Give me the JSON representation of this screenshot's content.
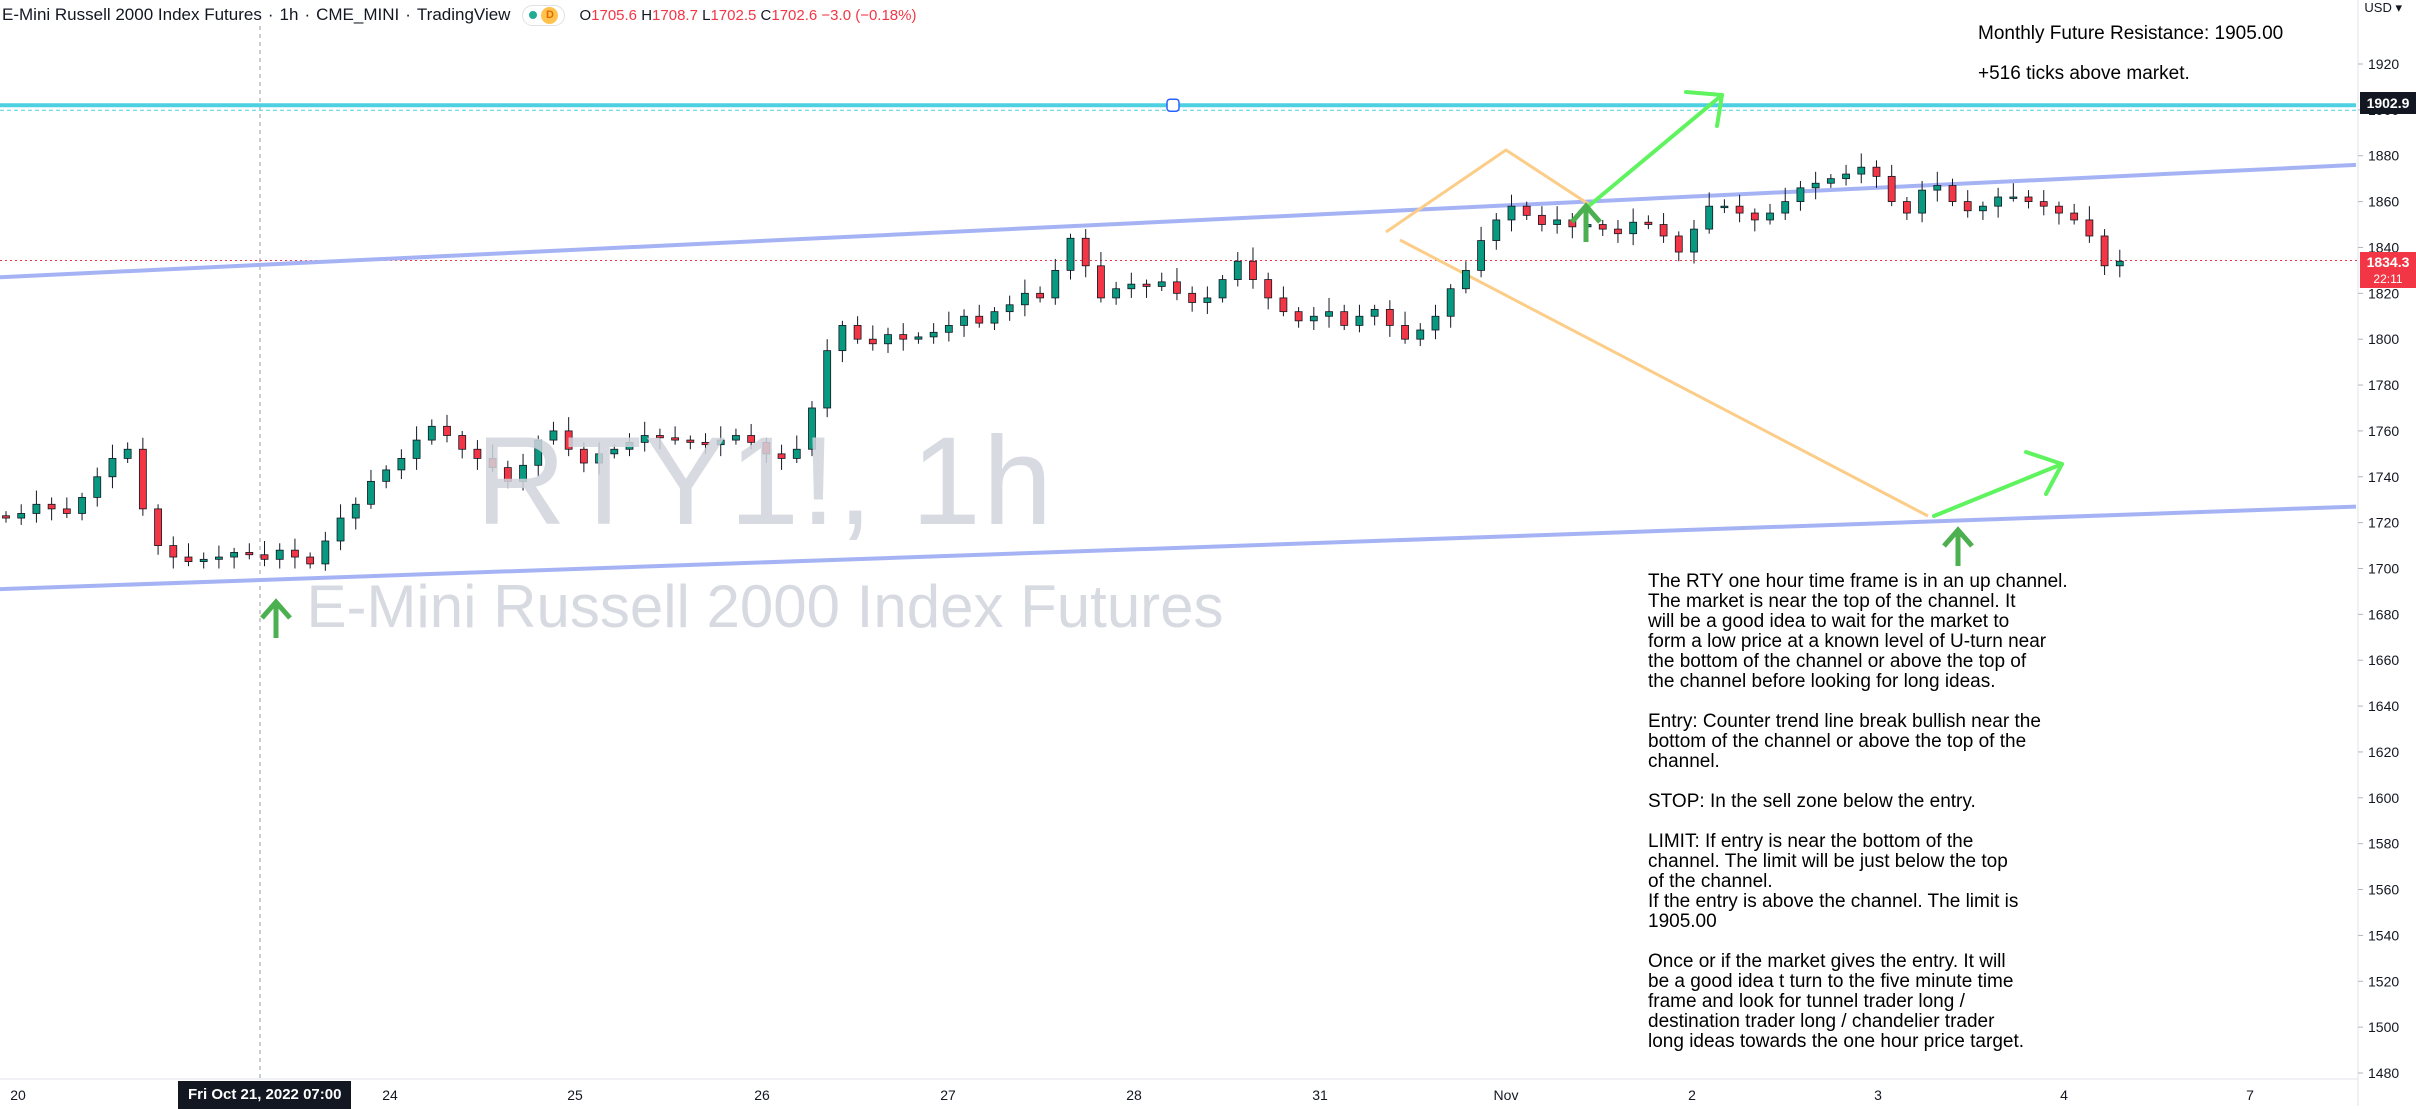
{
  "header": {
    "instrument": "E-Mini Russell 2000 Index Futures",
    "interval": "1h",
    "exchange": "CME_MINI",
    "platform": "TradingView",
    "session_badge": "D",
    "ohlc": {
      "o_label": "O",
      "o": "1705.6",
      "h_label": "H",
      "h": "1708.7",
      "l_label": "L",
      "l": "1702.5",
      "c_label": "C",
      "c": "1702.6",
      "change": "−3.0 (−0.18%)"
    },
    "currency": "USD"
  },
  "watermark": {
    "symbol": "RTY1!, 1h",
    "description": "E-Mini Russell 2000 Index Futures"
  },
  "notes": {
    "resistance_title": "Monthly Future Resistance:  1905.00",
    "resistance_ticks": "+516 ticks above market.",
    "analysis_p1": "The RTY one hour time frame is in an up channel.\nThe market is near the top of the channel. It\nwill be a good idea to wait for the market to\nform a low price at a known level of U-turn near\nthe bottom of the channel or above the top of\nthe channel before looking for long ideas.",
    "analysis_p2": "Entry: Counter trend line break bullish near the\nbottom of the channel or above the top of the\nchannel.",
    "analysis_p3": "STOP: In the sell zone below the entry.",
    "analysis_p4": "LIMIT: If entry is near the bottom of the\nchannel. The limit will be just below the top\nof the channel.\nIf the entry is above the channel. The limit is\n1905.00",
    "analysis_p5": "Once or if the market gives the entry. It will\nbe a good idea t turn to the five minute time\nframe and look for tunnel trader long /\ndestination trader long / chandelier trader\nlong ideas towards the one hour price target."
  },
  "price_labels": {
    "resistance": "1902.9",
    "last_price": "1834.3",
    "countdown": "22:11"
  },
  "crosshair_date_label": "Fri Oct 21, 2022   07:00",
  "chart_data": {
    "type": "candlestick",
    "title": "RTY1!, 1h",
    "ylim": [
      1480,
      1940
    ],
    "y_ticks": [
      1920,
      1900,
      1880,
      1860,
      1840,
      1820,
      1800,
      1780,
      1760,
      1740,
      1720,
      1700,
      1680,
      1660,
      1640,
      1620,
      1600,
      1580,
      1560,
      1540,
      1520,
      1500,
      1480
    ],
    "x_ticks": [
      "20",
      "24",
      "25",
      "26",
      "27",
      "28",
      "31",
      "Nov",
      "2",
      "3",
      "4",
      "7"
    ],
    "close_series": [
      1722,
      1724,
      1728,
      1726,
      1724,
      1731,
      1740,
      1748,
      1752,
      1726,
      1710,
      1705,
      1703,
      1704,
      1705,
      1707,
      1706,
      1704,
      1708,
      1705,
      1702,
      1712,
      1722,
      1728,
      1738,
      1743,
      1748,
      1756,
      1762,
      1758,
      1752,
      1748,
      1744,
      1738,
      1745,
      1756,
      1760,
      1752,
      1746,
      1750,
      1752,
      1755,
      1758,
      1757,
      1756,
      1755,
      1754,
      1756,
      1758,
      1755,
      1750,
      1748,
      1752,
      1770,
      1795,
      1806,
      1800,
      1798,
      1802,
      1800,
      1801,
      1803,
      1806,
      1810,
      1807,
      1812,
      1815,
      1820,
      1818,
      1830,
      1844,
      1832,
      1818,
      1822,
      1824,
      1823,
      1825,
      1820,
      1816,
      1818,
      1826,
      1834,
      1826,
      1818,
      1812,
      1808,
      1810,
      1812,
      1806,
      1810,
      1813,
      1806,
      1800,
      1804,
      1810,
      1822,
      1830,
      1843,
      1852,
      1858,
      1854,
      1850,
      1852,
      1849,
      1850,
      1848,
      1846,
      1851,
      1850,
      1845,
      1838,
      1848,
      1858,
      1858,
      1855,
      1852,
      1855,
      1860,
      1866,
      1868,
      1870,
      1872,
      1875,
      1871,
      1860,
      1855,
      1865,
      1867,
      1860,
      1856,
      1858,
      1862,
      1862,
      1860,
      1858,
      1855,
      1852,
      1845,
      1832,
      1834
    ],
    "channel": {
      "upper": {
        "start_value": 1827,
        "end_value": 1876
      },
      "lower": {
        "start_value": 1691,
        "end_value": 1727
      }
    },
    "resistance_level": 1902.9,
    "last_close": 1834.3,
    "series": [
      {
        "name": "RTY1!",
        "values": []
      }
    ]
  },
  "colors": {
    "up": "#089981",
    "down": "#f23645",
    "channel": "#a5b3f5",
    "resistance": "#4dd0e1",
    "projection": "#fbcd88",
    "arrow_target": "#5ff45f",
    "arrow_signal": "#4caf50"
  }
}
